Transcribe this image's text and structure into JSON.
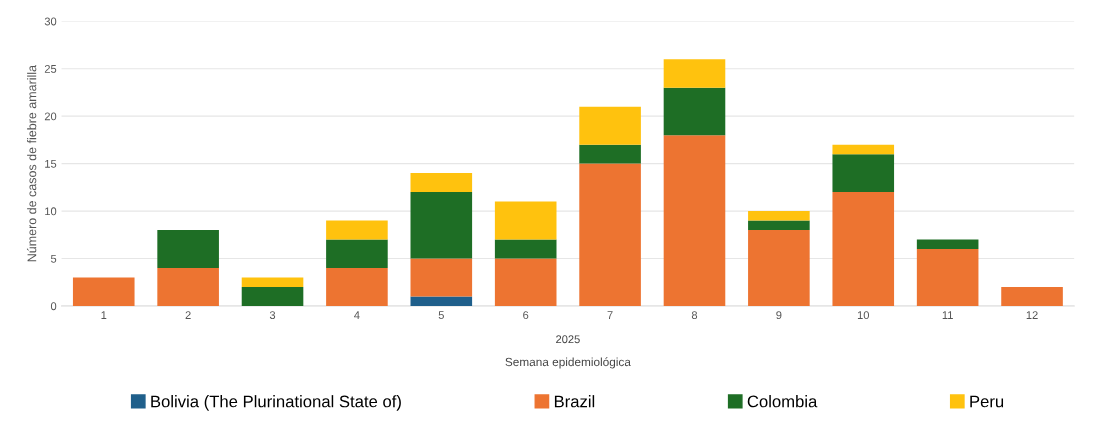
{
  "chart_data": {
    "type": "bar",
    "stacked": true,
    "categories": [
      "1",
      "2",
      "3",
      "4",
      "5",
      "6",
      "7",
      "8",
      "9",
      "10",
      "11",
      "12"
    ],
    "series": [
      {
        "name": "Bolivia (The Plurinational State of)",
        "color": "#1f5f8b",
        "values": [
          0,
          0,
          0,
          0,
          1,
          0,
          0,
          0,
          0,
          0,
          0,
          0
        ]
      },
      {
        "name": "Brazil",
        "color": "#ed7431",
        "values": [
          3,
          4,
          0,
          4,
          4,
          5,
          15,
          18,
          8,
          12,
          6,
          2
        ]
      },
      {
        "name": "Colombia",
        "color": "#1e6e25",
        "values": [
          0,
          4,
          2,
          3,
          7,
          2,
          2,
          5,
          1,
          4,
          1,
          0
        ]
      },
      {
        "name": "Peru",
        "color": "#ffc20e",
        "values": [
          0,
          0,
          1,
          2,
          2,
          4,
          4,
          3,
          1,
          1,
          0,
          0
        ]
      }
    ],
    "ylim": [
      0,
      30
    ],
    "yticks": [
      0,
      5,
      10,
      15,
      20,
      25,
      30
    ],
    "ylabel": "Número de casos de fiebre amarilla",
    "xlabel": "Semana epidemiológica",
    "annotations": [
      "2025"
    ],
    "grid": "y",
    "legend": "bottom"
  }
}
